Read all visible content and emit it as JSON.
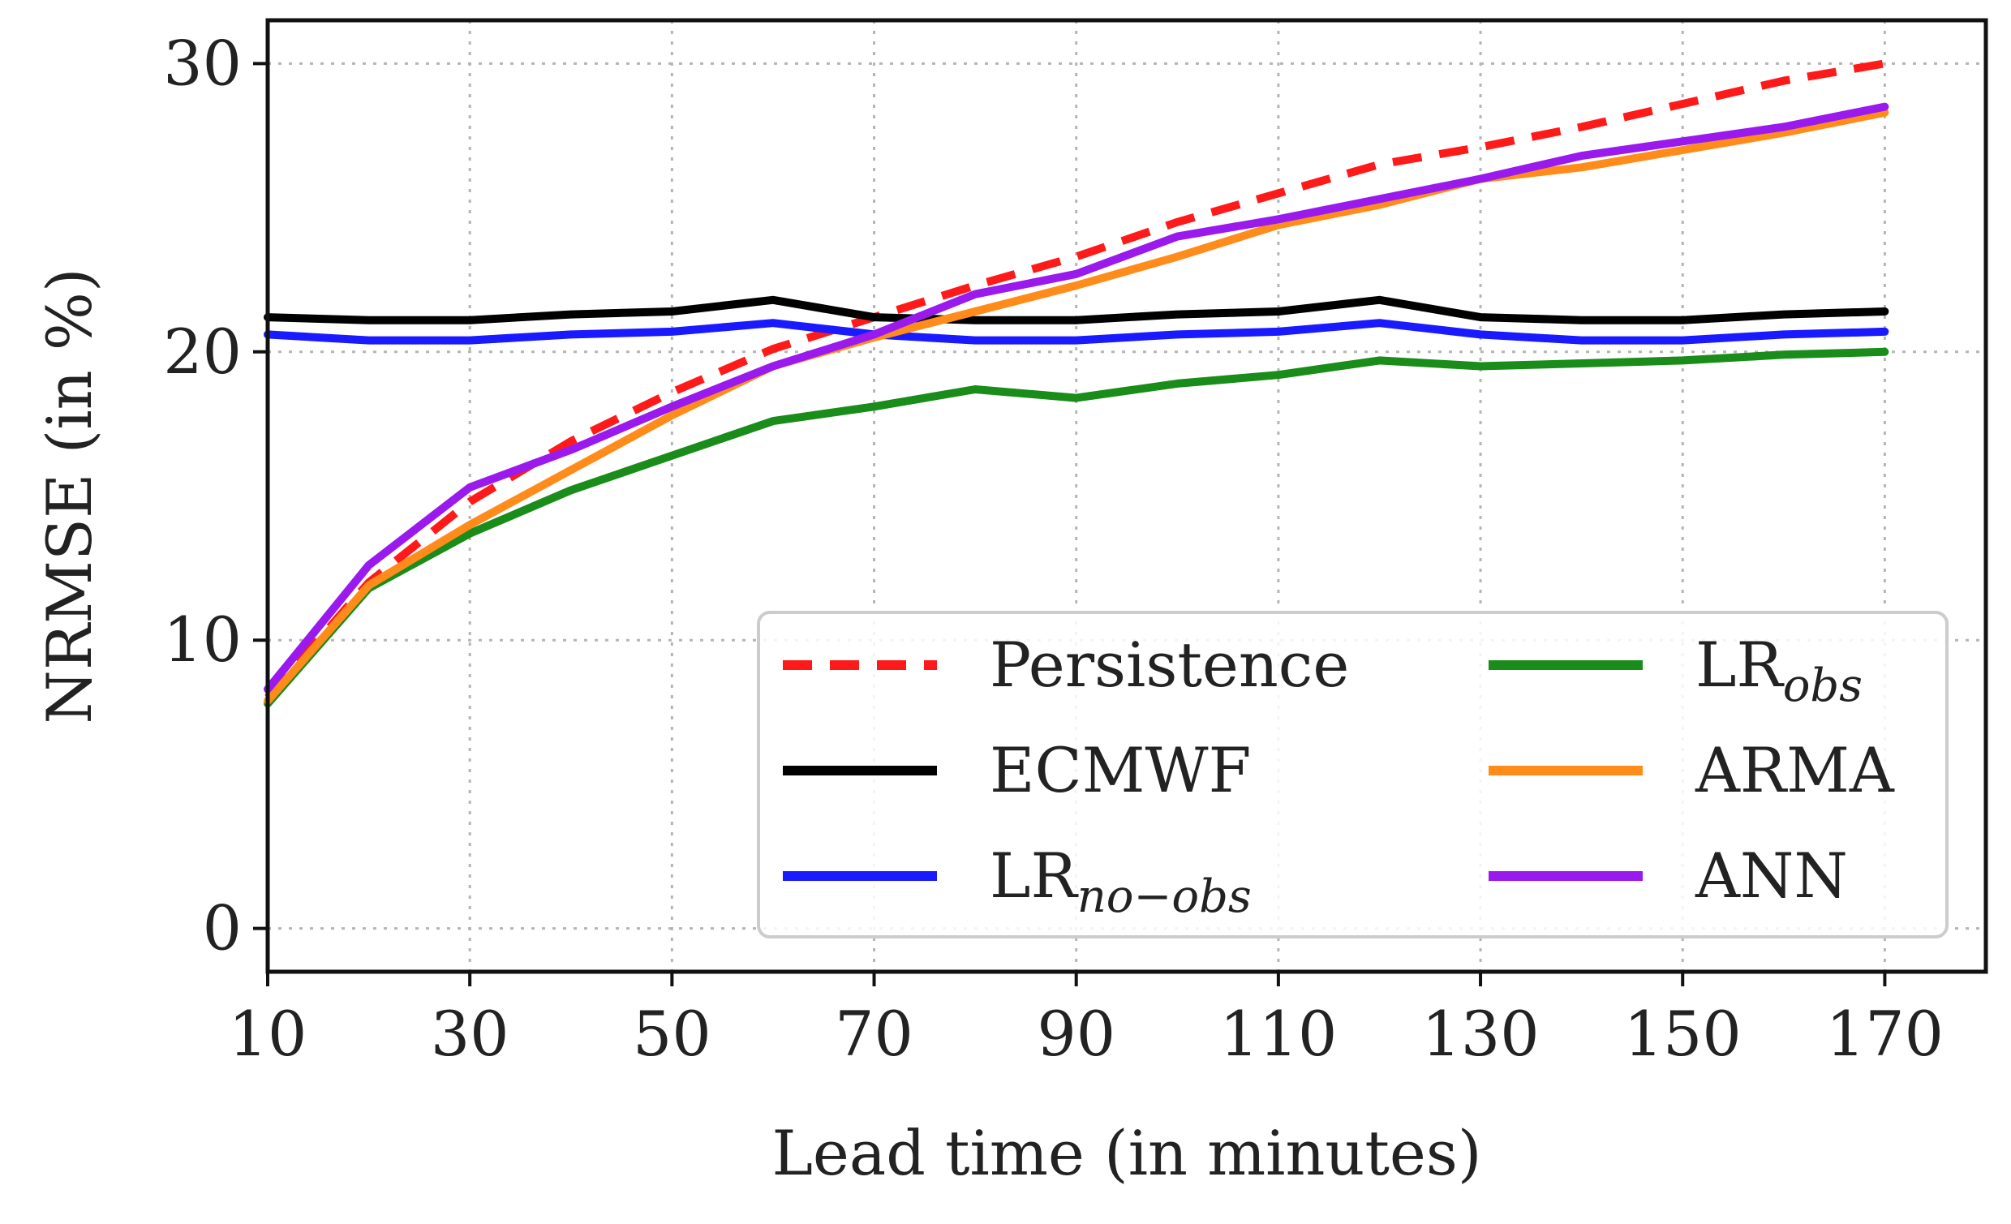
{
  "chart_data": {
    "type": "line",
    "title": "",
    "xlabel": "Lead time (in minutes)",
    "ylabel": "NRMSE (in %)",
    "xlim": [
      10,
      180
    ],
    "ylim": [
      -1.5,
      31.5
    ],
    "xticks": [
      10,
      30,
      50,
      70,
      90,
      110,
      130,
      150,
      170
    ],
    "yticks": [
      0,
      10,
      20,
      30
    ],
    "grid": true,
    "legend_position": "lower-right",
    "x": [
      10,
      20,
      30,
      40,
      50,
      60,
      70,
      80,
      90,
      100,
      110,
      120,
      130,
      140,
      150,
      160,
      170
    ],
    "series": [
      {
        "name": "Persistence",
        "main": "Persistence",
        "sub": "",
        "color": "#ff1a1a",
        "dash": "36,22",
        "values": [
          8.0,
          12.0,
          14.8,
          16.9,
          18.6,
          20.1,
          21.2,
          22.3,
          23.3,
          24.5,
          25.5,
          26.5,
          27.1,
          27.8,
          28.6,
          29.4,
          30.0
        ]
      },
      {
        "name": "ECMWF",
        "main": "ECMWF",
        "sub": "",
        "color": "#000000",
        "dash": "",
        "values": [
          21.2,
          21.1,
          21.1,
          21.3,
          21.4,
          21.8,
          21.2,
          21.1,
          21.1,
          21.3,
          21.4,
          21.8,
          21.2,
          21.1,
          21.1,
          21.3,
          21.4
        ]
      },
      {
        "name": "LR_no-obs",
        "main": "LR",
        "sub": "no−obs",
        "color": "#1a1aff",
        "dash": "",
        "values": [
          20.6,
          20.4,
          20.4,
          20.6,
          20.7,
          21.0,
          20.6,
          20.4,
          20.4,
          20.6,
          20.7,
          21.0,
          20.6,
          20.4,
          20.4,
          20.6,
          20.7
        ]
      },
      {
        "name": "LR_obs",
        "main": "LR",
        "sub": "obs",
        "color": "#1a8c1a",
        "dash": "",
        "values": [
          7.8,
          11.8,
          13.7,
          15.2,
          16.4,
          17.6,
          18.1,
          18.7,
          18.4,
          18.9,
          19.2,
          19.7,
          19.5,
          19.6,
          19.7,
          19.9,
          20.0
        ]
      },
      {
        "name": "ARMA",
        "main": "ARMA",
        "sub": "",
        "color": "#ff8c1a",
        "dash": "",
        "values": [
          7.9,
          11.9,
          14.0,
          15.9,
          17.8,
          19.5,
          20.5,
          21.4,
          22.3,
          23.3,
          24.4,
          25.1,
          26.0,
          26.4,
          27.0,
          27.6,
          28.3
        ]
      },
      {
        "name": "ANN",
        "main": "ANN",
        "sub": "",
        "color": "#9a1aee",
        "dash": "",
        "values": [
          8.3,
          12.6,
          15.3,
          16.6,
          18.1,
          19.5,
          20.6,
          22.0,
          22.7,
          24.0,
          24.6,
          25.3,
          26.0,
          26.8,
          27.3,
          27.8,
          28.5
        ]
      }
    ]
  }
}
